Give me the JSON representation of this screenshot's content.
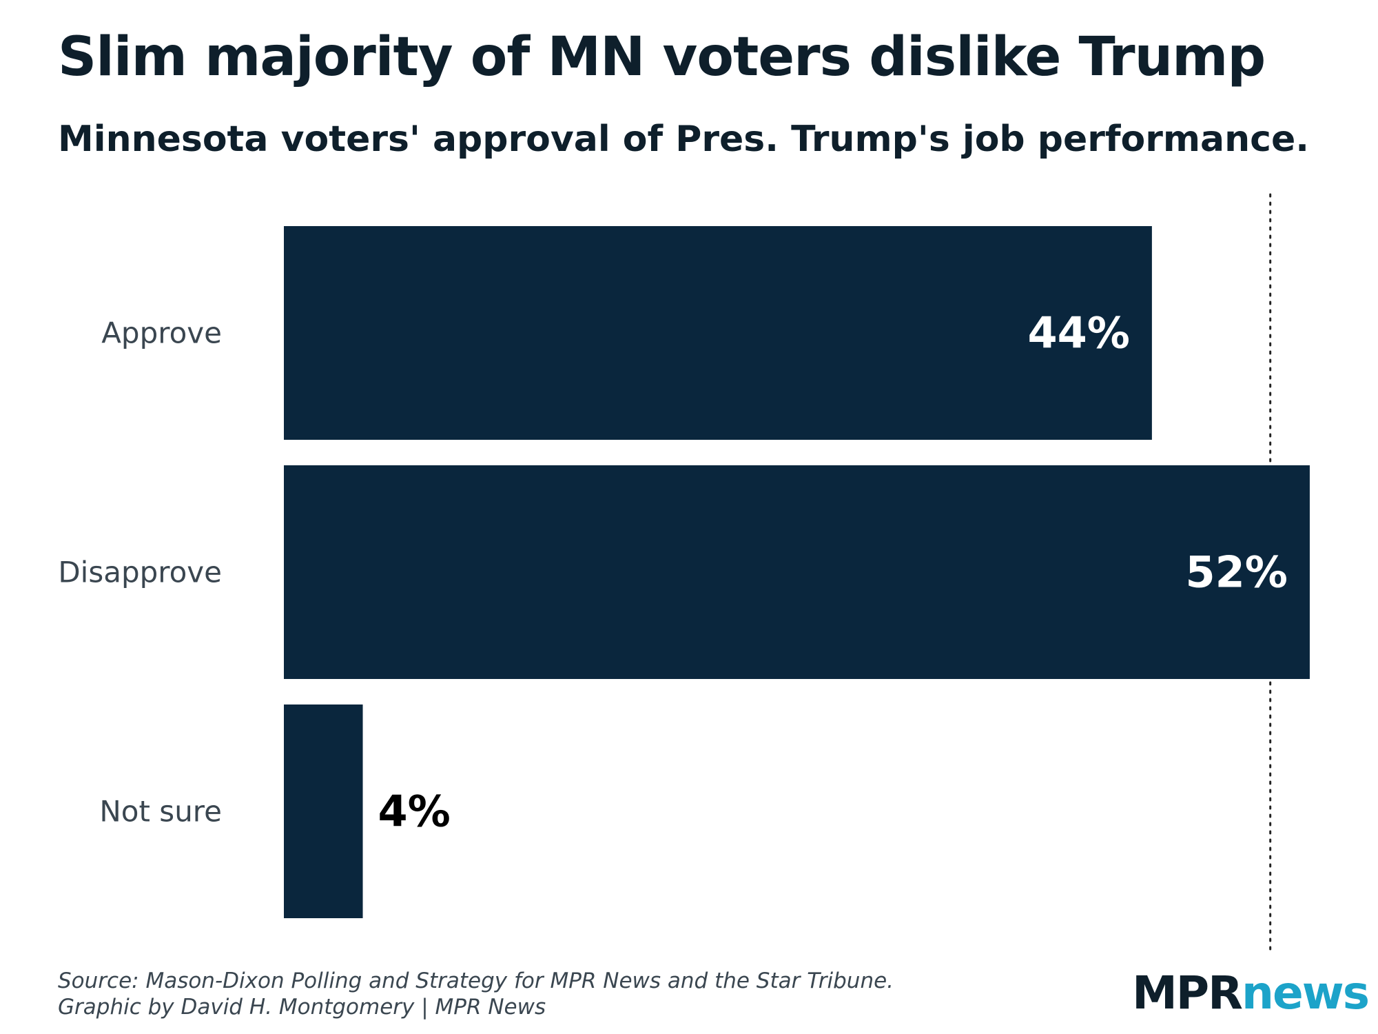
{
  "title": "Slim majority of MN voters dislike Trump",
  "subtitle": "Minnesota voters' approval of Pres. Trump's job performance.",
  "chart_data": {
    "type": "bar",
    "orientation": "horizontal",
    "categories": [
      "Approve",
      "Disapprove",
      "Not sure"
    ],
    "values": [
      44,
      52,
      4
    ],
    "value_labels": [
      "44%",
      "52%",
      "4%"
    ],
    "xlim": [
      0,
      50.5
    ],
    "reference_line": 50,
    "grid": false,
    "legend": "none",
    "bar_color": "#0a263d"
  },
  "source_line1": "Source: Mason-Dixon Polling and Strategy for MPR News and the Star Tribune.",
  "source_line2": "Graphic by David H. Montgomery | MPR News",
  "logo": {
    "part1": "MPR",
    "part2": "news",
    "color1": "#0e1f2b",
    "color2": "#1ca3c9"
  }
}
